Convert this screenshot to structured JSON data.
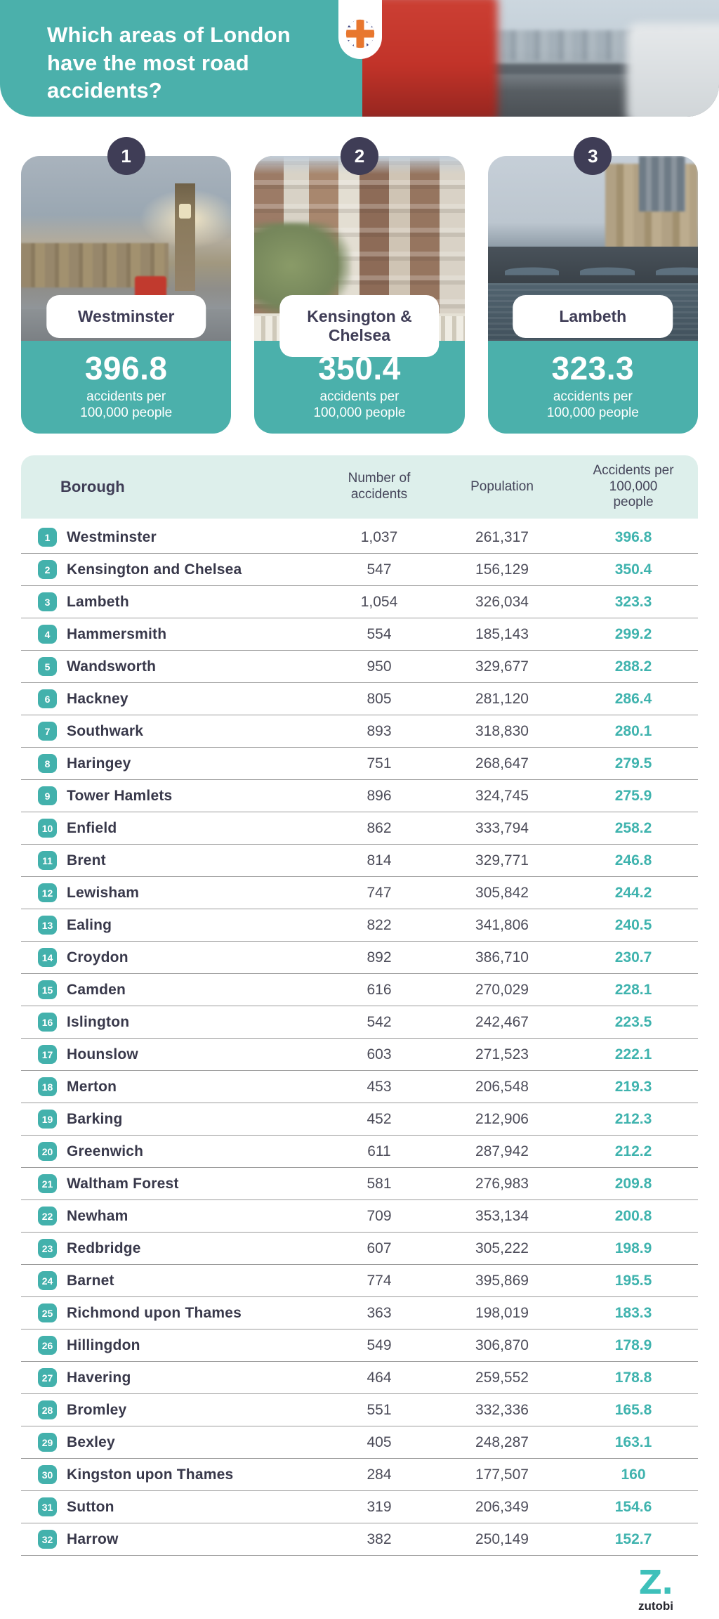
{
  "colors": {
    "accent_teal": "#4BB0AB",
    "badge_teal": "#43B1AC",
    "rate_teal": "#3FB3AE",
    "navy": "#3F3D56",
    "table_header_mint": "#DDEFEB",
    "row_divider_gray": "#9B9B9B",
    "title_white": "#FFFFFF"
  },
  "header": {
    "title": "Which areas of London have the most road accidents?"
  },
  "cards": [
    {
      "rank": "1",
      "name": "Westminster",
      "value": "396.8",
      "caption_line1": "accidents per",
      "caption_line2": "100,000 people"
    },
    {
      "rank": "2",
      "name": "Kensington & Chelsea",
      "value": "350.4",
      "caption_line1": "accidents per",
      "caption_line2": "100,000 people"
    },
    {
      "rank": "3",
      "name": "Lambeth",
      "value": "323.3",
      "caption_line1": "accidents per",
      "caption_line2": "100,000 people"
    }
  ],
  "table": {
    "headers": {
      "borough": "Borough",
      "accidents": "Number of accidents",
      "population": "Population",
      "rate": "Accidents per 100,000 people"
    },
    "rows": [
      [
        "1",
        "Westminster",
        "1,037",
        "261,317",
        "396.8"
      ],
      [
        "2",
        "Kensington and Chelsea",
        "547",
        "156,129",
        "350.4"
      ],
      [
        "3",
        "Lambeth",
        "1,054",
        "326,034",
        "323.3"
      ],
      [
        "4",
        "Hammersmith",
        "554",
        "185,143",
        "299.2"
      ],
      [
        "5",
        "Wandsworth",
        "950",
        "329,677",
        "288.2"
      ],
      [
        "6",
        "Hackney",
        "805",
        "281,120",
        "286.4"
      ],
      [
        "7",
        "Southwark",
        "893",
        "318,830",
        "280.1"
      ],
      [
        "8",
        "Haringey",
        "751",
        "268,647",
        "279.5"
      ],
      [
        "9",
        "Tower Hamlets",
        "896",
        "324,745",
        "275.9"
      ],
      [
        "10",
        "Enfield",
        "862",
        "333,794",
        "258.2"
      ],
      [
        "11",
        "Brent",
        "814",
        "329,771",
        "246.8"
      ],
      [
        "12",
        "Lewisham",
        "747",
        "305,842",
        "244.2"
      ],
      [
        "13",
        "Ealing",
        "822",
        "341,806",
        "240.5"
      ],
      [
        "14",
        "Croydon",
        "892",
        "386,710",
        "230.7"
      ],
      [
        "15",
        "Camden",
        "616",
        "270,029",
        "228.1"
      ],
      [
        "16",
        "Islington",
        "542",
        "242,467",
        "223.5"
      ],
      [
        "17",
        "Hounslow",
        "603",
        "271,523",
        "222.1"
      ],
      [
        "18",
        "Merton",
        "453",
        "206,548",
        "219.3"
      ],
      [
        "19",
        "Barking",
        "452",
        "212,906",
        "212.3"
      ],
      [
        "20",
        "Greenwich",
        "611",
        "287,942",
        "212.2"
      ],
      [
        "21",
        "Waltham Forest",
        "581",
        "276,983",
        "209.8"
      ],
      [
        "22",
        "Newham",
        "709",
        "353,134",
        "200.8"
      ],
      [
        "23",
        "Redbridge",
        "607",
        "305,222",
        "198.9"
      ],
      [
        "24",
        "Barnet",
        "774",
        "395,869",
        "195.5"
      ],
      [
        "25",
        "Richmond upon Thames",
        "363",
        "198,019",
        "183.3"
      ],
      [
        "26",
        "Hillingdon",
        "549",
        "306,870",
        "178.9"
      ],
      [
        "27",
        "Havering",
        "464",
        "259,552",
        "178.8"
      ],
      [
        "28",
        "Bromley",
        "551",
        "332,336",
        "165.8"
      ],
      [
        "29",
        "Bexley",
        "405",
        "248,287",
        "163.1"
      ],
      [
        "30",
        "Kingston upon Thames",
        "284",
        "177,507",
        "160"
      ],
      [
        "31",
        "Sutton",
        "319",
        "206,349",
        "154.6"
      ],
      [
        "32",
        "Harrow",
        "382",
        "250,149",
        "152.7"
      ]
    ]
  },
  "footer": {
    "logo_mark": "Z.",
    "logo_text": "zutobi"
  },
  "chart_data": {
    "type": "table",
    "title": "Which areas of London have the most road accidents?",
    "columns": [
      "Borough",
      "Number of accidents",
      "Population",
      "Accidents per 100,000 people"
    ],
    "categories": [
      "Westminster",
      "Kensington and Chelsea",
      "Lambeth",
      "Hammersmith",
      "Wandsworth",
      "Hackney",
      "Southwark",
      "Haringey",
      "Tower Hamlets",
      "Enfield",
      "Brent",
      "Lewisham",
      "Ealing",
      "Croydon",
      "Camden",
      "Islington",
      "Hounslow",
      "Merton",
      "Barking",
      "Greenwich",
      "Waltham Forest",
      "Newham",
      "Redbridge",
      "Barnet",
      "Richmond upon Thames",
      "Hillingdon",
      "Havering",
      "Bromley",
      "Bexley",
      "Kingston upon Thames",
      "Sutton",
      "Harrow"
    ],
    "series": [
      {
        "name": "Number of accidents",
        "values": [
          1037,
          547,
          1054,
          554,
          950,
          805,
          893,
          751,
          896,
          862,
          814,
          747,
          822,
          892,
          616,
          542,
          603,
          453,
          452,
          611,
          581,
          709,
          607,
          774,
          363,
          549,
          464,
          551,
          405,
          284,
          319,
          382
        ]
      },
      {
        "name": "Population",
        "values": [
          261317,
          156129,
          326034,
          185143,
          329677,
          281120,
          318830,
          268647,
          324745,
          333794,
          329771,
          305842,
          341806,
          386710,
          270029,
          242467,
          271523,
          206548,
          212906,
          287942,
          276983,
          353134,
          305222,
          395869,
          198019,
          306870,
          259552,
          332336,
          248287,
          177507,
          206349,
          250149
        ]
      },
      {
        "name": "Accidents per 100,000 people",
        "values": [
          396.8,
          350.4,
          323.3,
          299.2,
          288.2,
          286.4,
          280.1,
          279.5,
          275.9,
          258.2,
          246.8,
          244.2,
          240.5,
          230.7,
          228.1,
          223.5,
          222.1,
          219.3,
          212.3,
          212.2,
          209.8,
          200.8,
          198.9,
          195.5,
          183.3,
          178.9,
          178.8,
          165.8,
          163.1,
          160,
          154.6,
          152.7
        ]
      }
    ]
  }
}
